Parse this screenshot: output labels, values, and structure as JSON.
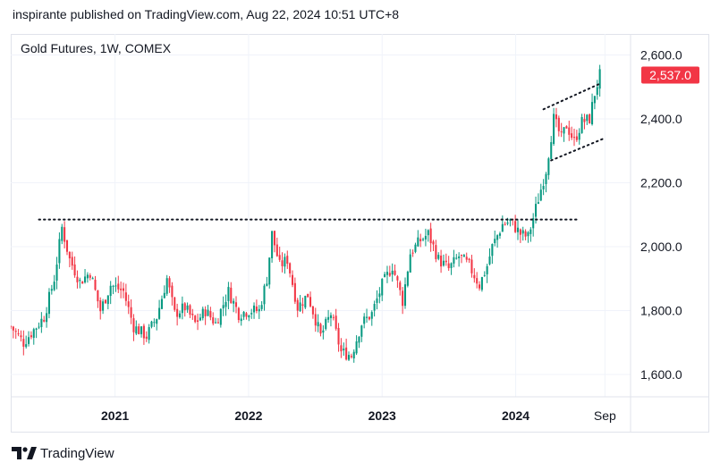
{
  "header": {
    "caption": "inspirante published on TradingView.com, Aug 22, 2024 10:51 UTC+8"
  },
  "legend": {
    "title": "Gold Futures, 1W, COMEX"
  },
  "footer": {
    "brand": "TradingView"
  },
  "colors": {
    "up": "#089981",
    "down": "#f23645",
    "price_label_bg": "#f23645",
    "grid": "#f0f3fa",
    "dotted": "#131722"
  },
  "chart_data": {
    "type": "candlestick",
    "symbol": "Gold Futures",
    "interval": "1W",
    "exchange": "COMEX",
    "ylim": [
      1560,
      2640
    ],
    "y_ticks": [
      1600,
      1800,
      2000,
      2200,
      2400,
      2600
    ],
    "y_tick_labels": [
      "1,600.0",
      "1,800.0",
      "2,000.0",
      "2,200.0",
      "2,400.0",
      "2,600.0"
    ],
    "x_ticks": [
      {
        "label": "2021",
        "date": "2021-01-01"
      },
      {
        "label": "2022",
        "date": "2022-01-01"
      },
      {
        "label": "2023",
        "date": "2023-01-01"
      },
      {
        "label": "2024",
        "date": "2024-01-01"
      },
      {
        "label": "Sep",
        "date": "2024-09-01"
      }
    ],
    "xlim": [
      "2020-03-22",
      "2024-11-10"
    ],
    "last_price": 2537.0,
    "last_price_label": "2,537.0",
    "grid": true,
    "trend_lines": [
      {
        "name": "resistance",
        "style": "dotted",
        "points": [
          [
            "2020-06-07",
            2085
          ],
          [
            "2024-06-23",
            2085
          ]
        ]
      },
      {
        "name": "channel-upper",
        "style": "dotted",
        "points": [
          [
            "2024-03-17",
            2430
          ],
          [
            "2024-08-18",
            2510
          ]
        ]
      },
      {
        "name": "channel-lower",
        "style": "dotted",
        "points": [
          [
            "2024-04-07",
            2270
          ],
          [
            "2024-09-01",
            2340
          ]
        ]
      }
    ],
    "weekly_closes": [
      [
        "2020-03-22",
        1750
      ],
      [
        "2020-04-26",
        1700
      ],
      [
        "2020-05-24",
        1740
      ],
      [
        "2020-06-21",
        1780
      ],
      [
        "2020-07-19",
        1900
      ],
      [
        "2020-08-09",
        2060
      ],
      [
        "2020-08-30",
        1960
      ],
      [
        "2020-09-27",
        1890
      ],
      [
        "2020-10-25",
        1920
      ],
      [
        "2020-11-22",
        1800
      ],
      [
        "2020-12-20",
        1880
      ],
      [
        "2021-01-24",
        1860
      ],
      [
        "2021-02-21",
        1750
      ],
      [
        "2021-03-28",
        1720
      ],
      [
        "2021-04-25",
        1780
      ],
      [
        "2021-05-23",
        1900
      ],
      [
        "2021-06-13",
        1790
      ],
      [
        "2021-07-11",
        1810
      ],
      [
        "2021-08-08",
        1760
      ],
      [
        "2021-09-05",
        1800
      ],
      [
        "2021-10-03",
        1760
      ],
      [
        "2021-11-07",
        1860
      ],
      [
        "2021-12-05",
        1790
      ],
      [
        "2022-01-02",
        1800
      ],
      [
        "2022-01-30",
        1800
      ],
      [
        "2022-02-20",
        1900
      ],
      [
        "2022-03-06",
        2040
      ],
      [
        "2022-03-27",
        1940
      ],
      [
        "2022-04-17",
        1960
      ],
      [
        "2022-05-15",
        1810
      ],
      [
        "2022-06-12",
        1850
      ],
      [
        "2022-07-17",
        1720
      ],
      [
        "2022-08-14",
        1790
      ],
      [
        "2022-09-11",
        1670
      ],
      [
        "2022-10-09",
        1660
      ],
      [
        "2022-11-06",
        1760
      ],
      [
        "2022-12-04",
        1790
      ],
      [
        "2023-01-01",
        1880
      ],
      [
        "2023-01-29",
        1940
      ],
      [
        "2023-02-26",
        1830
      ],
      [
        "2023-03-19",
        1980
      ],
      [
        "2023-04-16",
        2020
      ],
      [
        "2023-05-07",
        2040
      ],
      [
        "2023-06-04",
        1960
      ],
      [
        "2023-07-02",
        1930
      ],
      [
        "2023-07-30",
        1970
      ],
      [
        "2023-08-27",
        1940
      ],
      [
        "2023-09-24",
        1880
      ],
      [
        "2023-10-15",
        1940
      ],
      [
        "2023-10-29",
        2000
      ],
      [
        "2023-11-26",
        2070
      ],
      [
        "2023-12-17",
        2080
      ],
      [
        "2024-01-14",
        2040
      ],
      [
        "2024-02-04",
        2030
      ],
      [
        "2024-03-03",
        2150
      ],
      [
        "2024-03-24",
        2240
      ],
      [
        "2024-04-14",
        2400
      ],
      [
        "2024-05-05",
        2340
      ],
      [
        "2024-05-19",
        2380
      ],
      [
        "2024-06-09",
        2330
      ],
      [
        "2024-06-30",
        2390
      ],
      [
        "2024-07-21",
        2400
      ],
      [
        "2024-08-04",
        2480
      ],
      [
        "2024-08-18",
        2537
      ]
    ]
  }
}
